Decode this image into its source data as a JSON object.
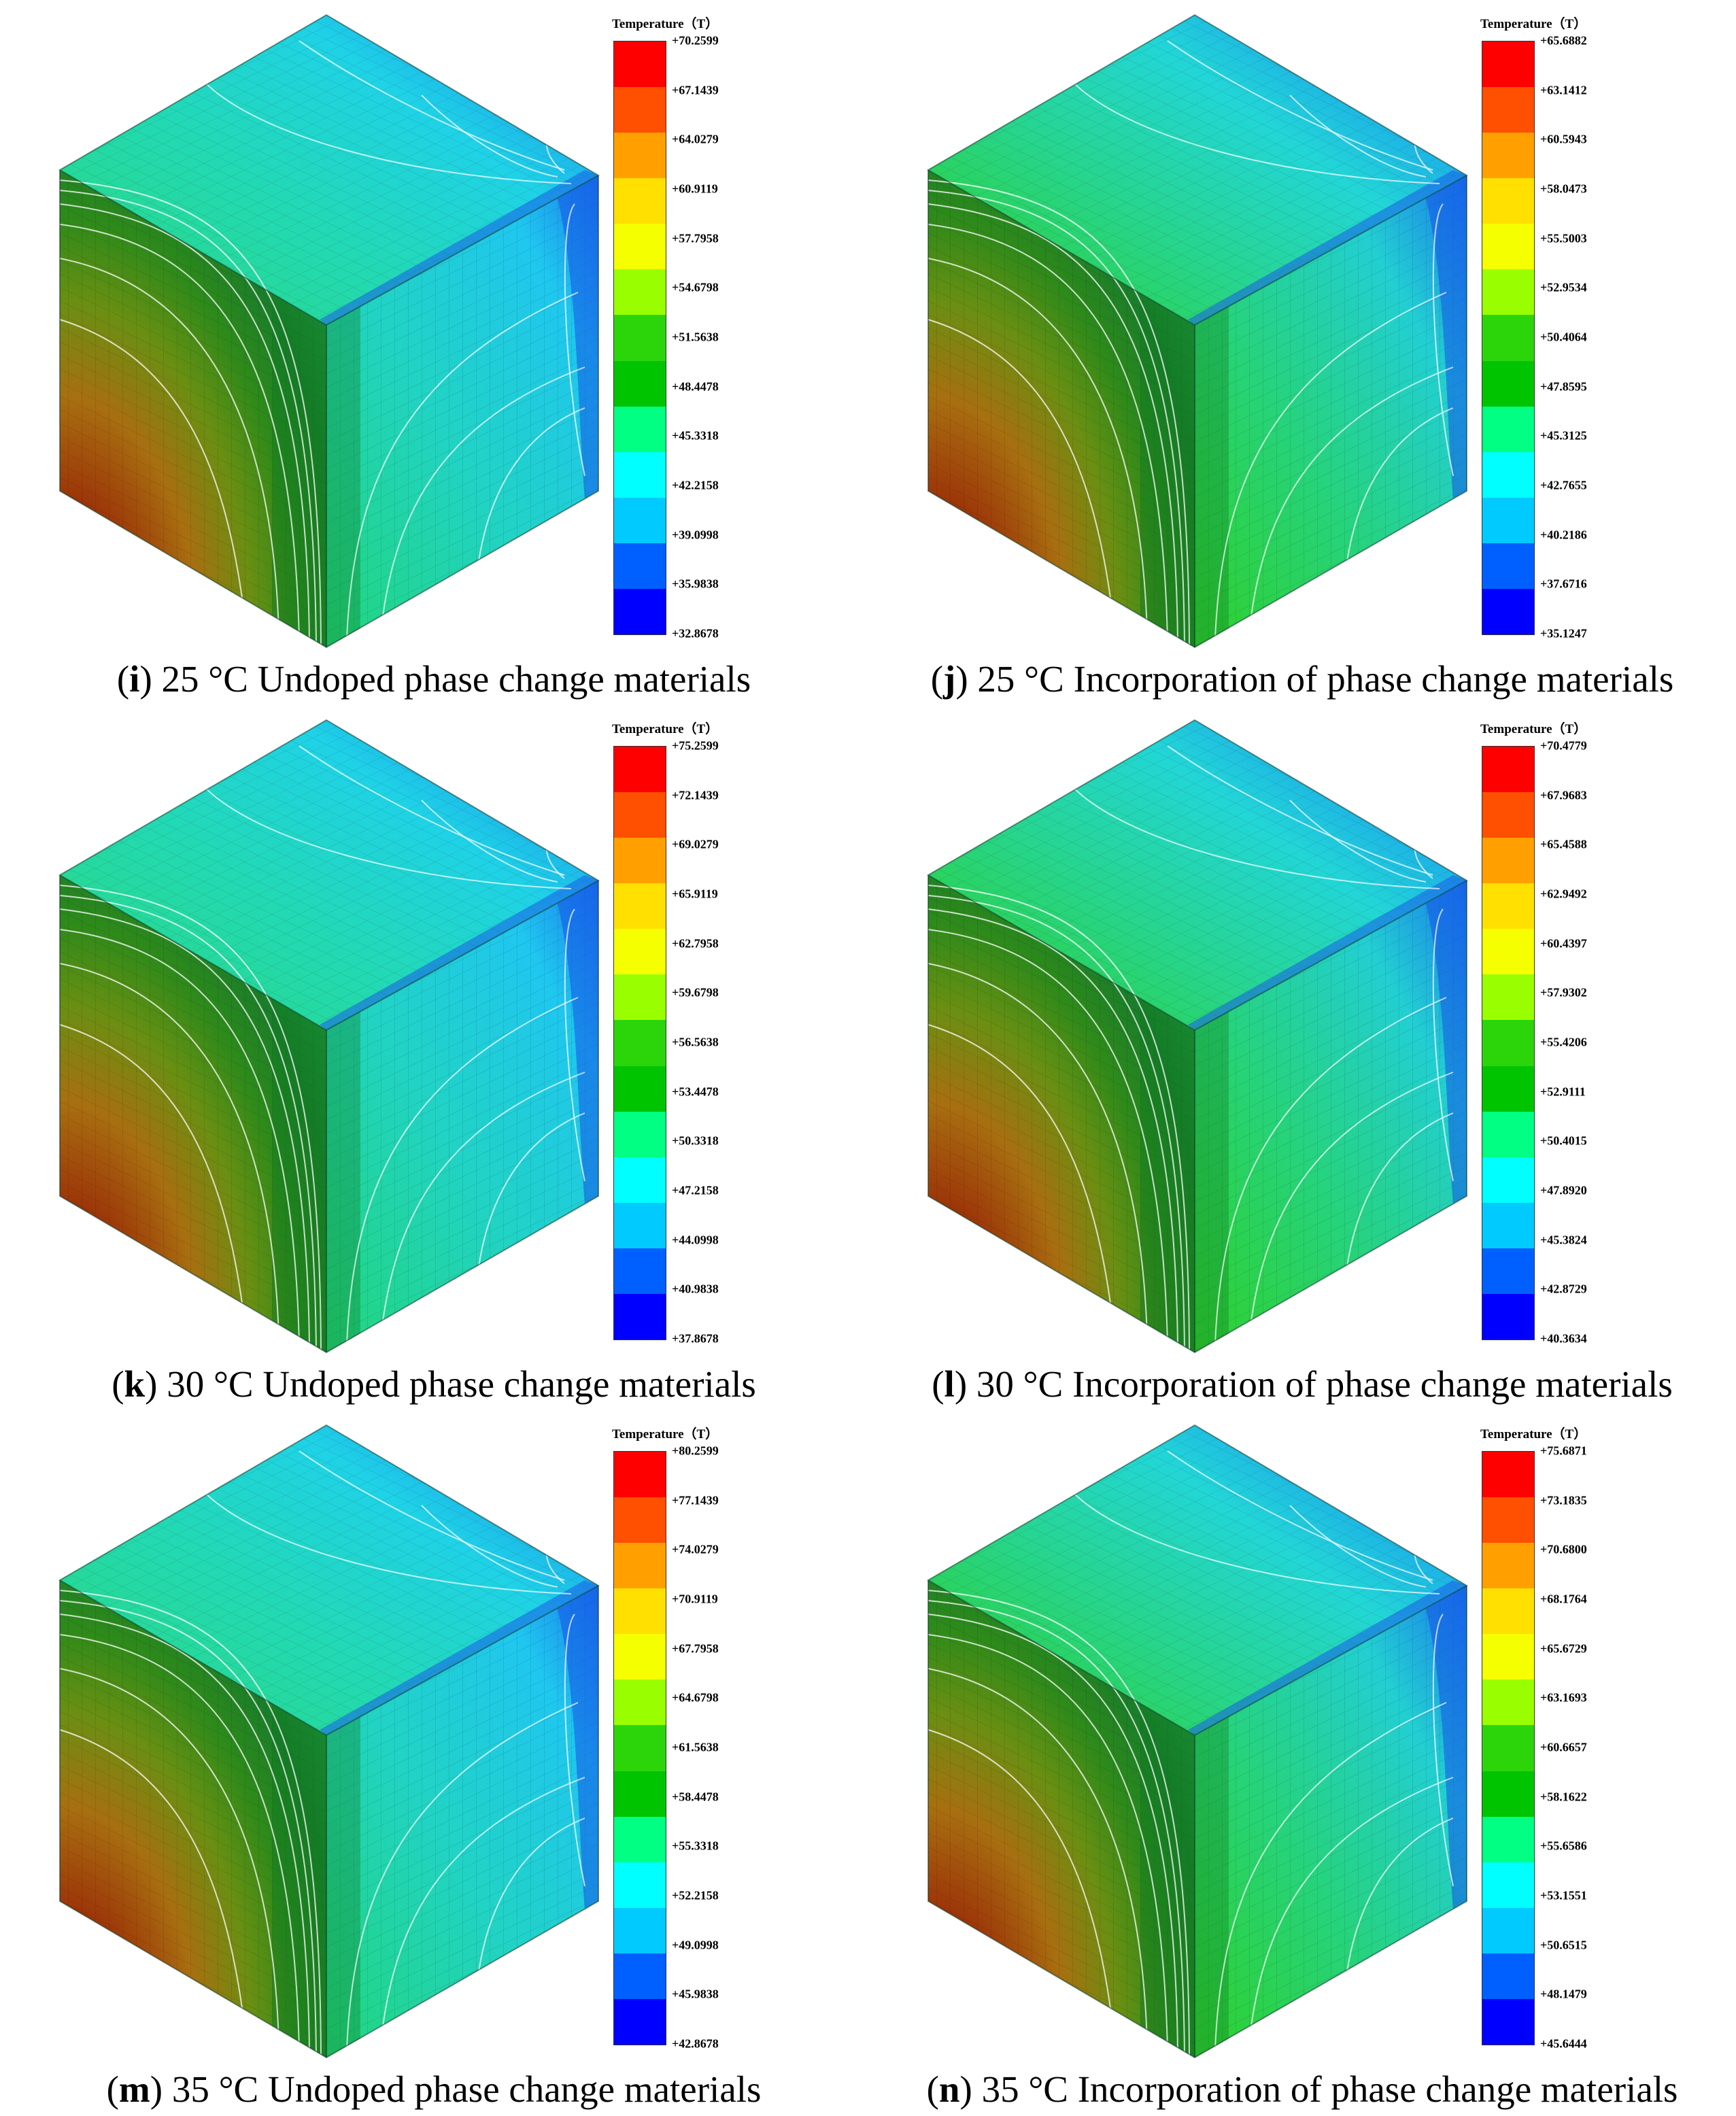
{
  "legend_title": "Temperature（T）",
  "legend_colors": [
    "#ff0000",
    "#ff4f00",
    "#ffa000",
    "#ffe000",
    "#f6ff00",
    "#99ff00",
    "#2bd50a",
    "#00c400",
    "#00ff83",
    "#00ffff",
    "#00caff",
    "#0060ff",
    "#0000ff"
  ],
  "panels": [
    {
      "letter": "i",
      "caption_rest": " 25 °C Undoped phase change materials",
      "ticks": [
        "+70.2599",
        "+67.1439",
        "+64.0279",
        "+60.9119",
        "+57.7958",
        "+54.6798",
        "+51.5638",
        "+48.4478",
        "+45.3318",
        "+42.2158",
        "+39.0998",
        "+35.9838",
        "+32.8678"
      ]
    },
    {
      "letter": "j",
      "caption_rest": " 25 °C Incorporation of phase change materials",
      "ticks": [
        "+65.6882",
        "+63.1412",
        "+60.5943",
        "+58.0473",
        "+55.5003",
        "+52.9534",
        "+50.4064",
        "+47.8595",
        "+45.3125",
        "+42.7655",
        "+40.2186",
        "+37.6716",
        "+35.1247"
      ]
    },
    {
      "letter": "k",
      "caption_rest": " 30 °C Undoped phase change materials",
      "ticks": [
        "+75.2599",
        "+72.1439",
        "+69.0279",
        "+65.9119",
        "+62.7958",
        "+59.6798",
        "+56.5638",
        "+53.4478",
        "+50.3318",
        "+47.2158",
        "+44.0998",
        "+40.9838",
        "+37.8678"
      ]
    },
    {
      "letter": "l",
      "caption_rest": " 30 °C Incorporation of phase change materials",
      "ticks": [
        "+70.4779",
        "+67.9683",
        "+65.4588",
        "+62.9492",
        "+60.4397",
        "+57.9302",
        "+55.4206",
        "+52.9111",
        "+50.4015",
        "+47.8920",
        "+45.3824",
        "+42.8729",
        "+40.3634"
      ]
    },
    {
      "letter": "m",
      "caption_rest": " 35 °C Undoped phase change materials",
      "ticks": [
        "+80.2599",
        "+77.1439",
        "+74.0279",
        "+70.9119",
        "+67.7958",
        "+64.6798",
        "+61.5638",
        "+58.4478",
        "+55.3318",
        "+52.2158",
        "+49.0998",
        "+45.9838",
        "+42.8678"
      ]
    },
    {
      "letter": "n",
      "caption_rest": " 35 °C Incorporation of phase change materials",
      "ticks": [
        "+75.6871",
        "+73.1835",
        "+70.6800",
        "+68.1764",
        "+65.6729",
        "+63.1693",
        "+60.6657",
        "+58.1622",
        "+55.6586",
        "+53.1551",
        "+50.6515",
        "+48.1479",
        "+45.6444"
      ]
    }
  ]
}
